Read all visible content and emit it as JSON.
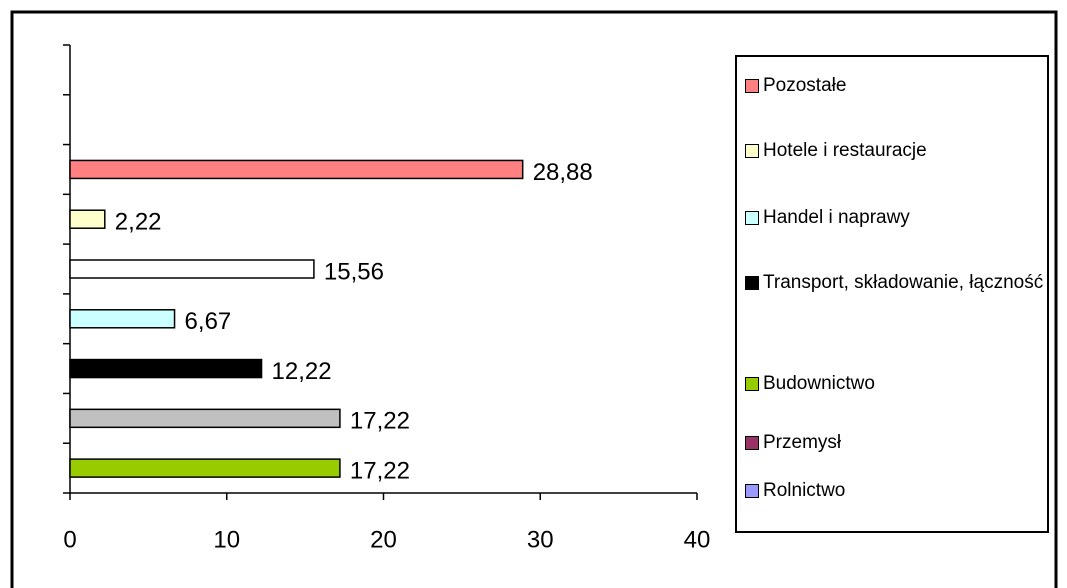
{
  "chart_data": {
    "type": "bar",
    "orientation": "horizontal",
    "categories": [
      null,
      null,
      null,
      null,
      null,
      null,
      null,
      null,
      null
    ],
    "values": [
      17.22,
      17.22,
      12.22,
      6.67,
      15.56,
      2.22,
      28.88,
      null,
      null
    ],
    "value_labels": [
      "17,22",
      "17,22",
      "12,22",
      "6,67",
      "15,56",
      "2,22",
      "28,88",
      null,
      null
    ],
    "colors": [
      "#99cc00",
      "#c0c0c0",
      "#000000",
      "#ccffff",
      "#ffffff",
      "#ffffcc",
      "#ff8080",
      null,
      null
    ],
    "xlim": [
      0,
      40
    ],
    "xticks": [
      0,
      10,
      20,
      30,
      40
    ],
    "legend": [
      {
        "name": "Pozostałe",
        "color": "#ff8080"
      },
      {
        "name": "Hotele i restauracje",
        "color": "#ffffcc"
      },
      {
        "name": "Handel i naprawy",
        "color": "#ccffff"
      },
      {
        "name": "Transport, składowanie, łączność",
        "color": "#000000"
      },
      {
        "name": "Budownictwo",
        "color": "#99cc00"
      },
      {
        "name": "Przemysł",
        "color": "#993366"
      },
      {
        "name": "Rolnictwo",
        "color": "#9999ff"
      }
    ]
  }
}
